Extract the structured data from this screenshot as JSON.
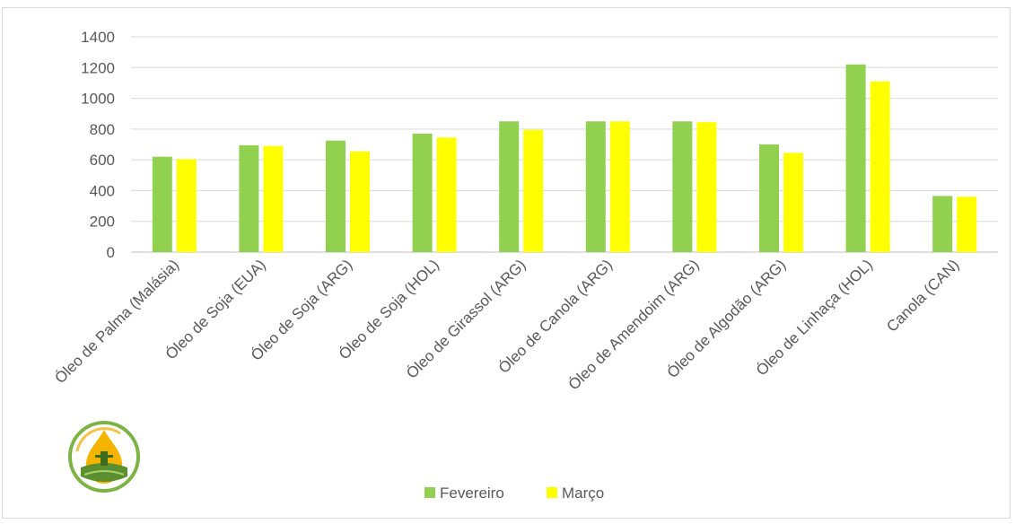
{
  "chart_data": {
    "type": "bar",
    "categories": [
      "Óleo de Palma (Malásia)",
      "Óleo de Soja (EUA)",
      "Óleo de Soja (ARG)",
      "Óleo de Soja (HOL)",
      "Óleo de Girassol (ARG)",
      "Óleo de Canola (ARG)",
      "Óleo de Amendoim (ARG)",
      "Óleo de Algodão (ARG)",
      "Óleo de Linhaça (HOL)",
      "Canola (CAN)"
    ],
    "series": [
      {
        "name": "Fevereiro",
        "color": "#92d050",
        "values": [
          620,
          695,
          725,
          770,
          850,
          850,
          850,
          700,
          1220,
          365
        ]
      },
      {
        "name": "Março",
        "color": "#ffff00",
        "values": [
          605,
          690,
          655,
          745,
          795,
          850,
          845,
          645,
          1110,
          360
        ]
      }
    ],
    "ylim": [
      0,
      1400
    ],
    "yticks": [
      "0",
      "200",
      "400",
      "600",
      "800",
      "1000",
      "1200",
      "1400"
    ],
    "grid": true,
    "legend_position": "bottom"
  },
  "logo": {
    "icon": "oil-drop-logo-icon"
  }
}
